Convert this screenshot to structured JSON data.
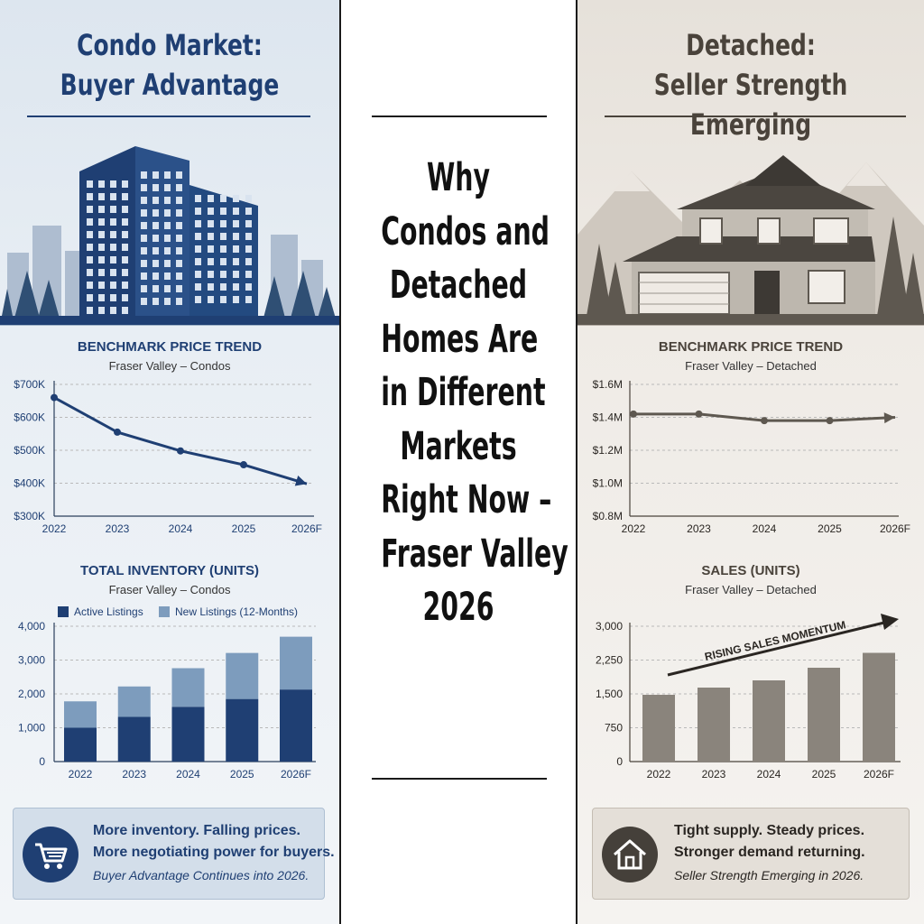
{
  "left": {
    "headline": [
      "Condo Market:",
      "Buyer Advantage"
    ],
    "price_chart": {
      "title": "BENCHMARK PRICE TREND",
      "subtitle": "Fraser Valley – Condos"
    },
    "inventory_chart": {
      "title": "TOTAL INVENTORY (UNITS)",
      "subtitle": "Fraser Valley – Condos"
    },
    "callout": {
      "line1": "More inventory. Falling prices.",
      "line2": "More negotiating power for buyers.",
      "line3": "Buyer Advantage Continues into 2026.",
      "icon": "shopping-cart-icon"
    }
  },
  "center": {
    "title_lines": [
      "Why",
      "Condos and",
      "Detached",
      "Homes Are",
      "in Different",
      "Markets",
      "Right Now –",
      "Fraser Valley",
      "2026"
    ]
  },
  "right": {
    "headline": [
      "Detached:",
      "Seller Strength Emerging"
    ],
    "price_chart": {
      "title": "BENCHMARK PRICE TREND",
      "subtitle": "Fraser Valley – Detached"
    },
    "sales_chart": {
      "title": "SALES (UNITS)",
      "subtitle": "Fraser Valley – Detached",
      "annotation": "RISING SALES MOMENTUM"
    },
    "callout": {
      "line1": "Tight supply. Steady prices.",
      "line2": "Stronger demand returning.",
      "line3": "Seller Strength Emerging in 2026.",
      "icon": "house-icon"
    }
  },
  "colors": {
    "condo_navy": "#1f3f73",
    "condo_light": "#7d9cbd",
    "detached_brown": "#5e5850",
    "detached_bar": "#8a847c"
  },
  "chart_data": [
    {
      "type": "line",
      "title": "BENCHMARK PRICE TREND",
      "subtitle": "Fraser Valley – Condos",
      "categories": [
        "2022",
        "2023",
        "2024",
        "2025",
        "2026F"
      ],
      "series": [
        {
          "values": [
            660000,
            555000,
            498000,
            456000,
            398000
          ]
        }
      ],
      "y_ticks": [
        "$300K",
        "$400K",
        "$500K",
        "$600K",
        "$700K"
      ],
      "ylim": [
        300000,
        700000
      ],
      "grid": true
    },
    {
      "type": "bar",
      "stacked": true,
      "title": "TOTAL INVENTORY (UNITS)",
      "subtitle": "Fraser Valley – Condos",
      "categories": [
        "2022",
        "2023",
        "2024",
        "2025",
        "2026F"
      ],
      "series": [
        {
          "name": "Active Listings",
          "values": [
            1000,
            1320,
            1620,
            1850,
            2130
          ]
        },
        {
          "name": "New Listings (12-Months)",
          "values": [
            780,
            900,
            1140,
            1360,
            1560
          ]
        }
      ],
      "y_ticks": [
        "0",
        "1,000",
        "2,000",
        "3,000",
        "4,000"
      ],
      "ylim": [
        0,
        4000
      ],
      "legend": "top",
      "grid": true
    },
    {
      "type": "line",
      "title": "BENCHMARK PRICE TREND",
      "subtitle": "Fraser Valley – Detached",
      "categories": [
        "2022",
        "2023",
        "2024",
        "2025",
        "2026F"
      ],
      "series": [
        {
          "values": [
            1420000,
            1420000,
            1380000,
            1380000,
            1400000
          ]
        }
      ],
      "y_ticks": [
        "$0.8M",
        "$1.0M",
        "$1.2M",
        "$1.4M",
        "$1.6M"
      ],
      "ylim": [
        800000,
        1600000
      ],
      "grid": true
    },
    {
      "type": "bar",
      "title": "SALES (UNITS)",
      "subtitle": "Fraser Valley – Detached",
      "categories": [
        "2022",
        "2023",
        "2024",
        "2025",
        "2026F"
      ],
      "values": [
        1480,
        1640,
        1800,
        2080,
        2410
      ],
      "y_ticks": [
        "0",
        "750",
        "1,500",
        "2,250",
        "3,000"
      ],
      "ylim": [
        0,
        3000
      ],
      "annotation": "RISING SALES MOMENTUM",
      "grid": true
    }
  ]
}
